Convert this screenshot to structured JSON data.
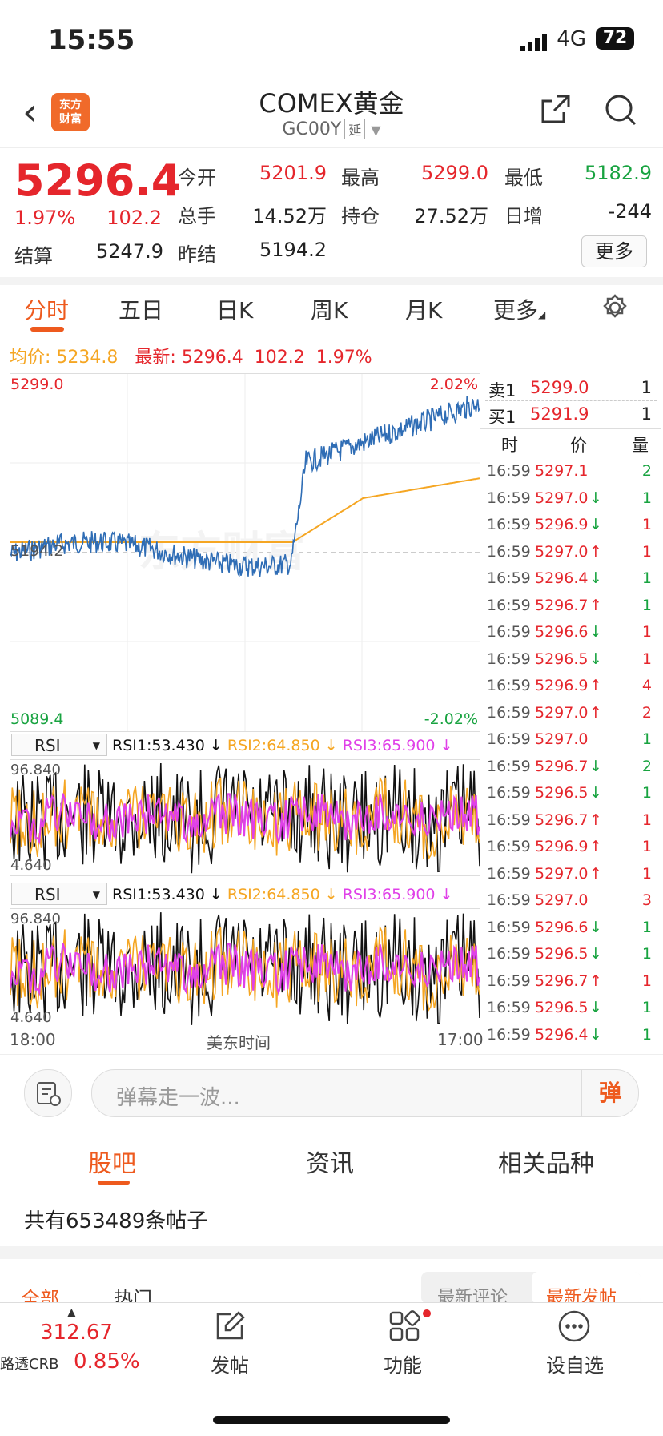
{
  "status_bar": {
    "time": "15:55",
    "network": "4G",
    "battery": "72"
  },
  "header": {
    "logo_line1": "东方",
    "logo_line2": "财富",
    "title": "COMEX黄金",
    "code": "GC00Y",
    "badge": "延"
  },
  "quote": {
    "price": "5296.4",
    "change_pct": "1.97%",
    "change": "102.2",
    "settle_label": "结算",
    "settle": "5247.9",
    "open_label": "今开",
    "open": "5201.9",
    "volume_label": "总手",
    "volume": "14.52万",
    "prev_label": "昨结",
    "prev": "5194.2",
    "high_label": "最高",
    "high": "5299.0",
    "oi_label": "持仓",
    "oi": "27.52万",
    "low_label": "最低",
    "low": "5182.9",
    "daily_inc_label": "日增",
    "daily_inc": "-244",
    "more": "更多"
  },
  "chart_tabs": [
    "分时",
    "五日",
    "日K",
    "周K",
    "月K",
    "更多"
  ],
  "avg_line": {
    "avg_label": "均价:",
    "avg": "5234.8",
    "latest_label": "最新:",
    "latest": "5296.4",
    "chg": "102.2",
    "pct": "1.97%"
  },
  "chart": {
    "max_label": "5299.0",
    "min_label": "5089.4",
    "mid_label": "5194.2",
    "max_pct": "2.02%",
    "min_pct": "-2.02%",
    "x_start": "18:00",
    "x_mid": "美东时间",
    "x_end": "17:00",
    "watermark": "东方财富"
  },
  "rsi": {
    "selector": "RSI",
    "rsi1": "RSI1:53.430 ↓",
    "rsi2": "RSI2:64.850 ↓",
    "rsi3": "RSI3:65.900 ↓",
    "top": "96.840",
    "bottom": "4.640"
  },
  "order_book": {
    "sell_label": "卖1",
    "sell_price": "5299.0",
    "sell_qty": "1",
    "buy_label": "买1",
    "buy_price": "5291.9",
    "buy_qty": "1",
    "col_time": "时",
    "col_price": "价",
    "col_qty": "量"
  },
  "trades": [
    {
      "t": "16:59",
      "p": "5297.1",
      "q": "2",
      "a": "",
      "c": "green"
    },
    {
      "t": "16:59",
      "p": "5297.0",
      "q": "1",
      "a": "↓",
      "c": "green"
    },
    {
      "t": "16:59",
      "p": "5296.9",
      "q": "1",
      "a": "↓",
      "c": "red"
    },
    {
      "t": "16:59",
      "p": "5297.0",
      "q": "1",
      "a": "↑",
      "c": "red"
    },
    {
      "t": "16:59",
      "p": "5296.4",
      "q": "1",
      "a": "↓",
      "c": "green"
    },
    {
      "t": "16:59",
      "p": "5296.7",
      "q": "1",
      "a": "↑",
      "c": "green"
    },
    {
      "t": "16:59",
      "p": "5296.6",
      "q": "1",
      "a": "↓",
      "c": "red"
    },
    {
      "t": "16:59",
      "p": "5296.5",
      "q": "1",
      "a": "↓",
      "c": "red"
    },
    {
      "t": "16:59",
      "p": "5296.9",
      "q": "4",
      "a": "↑",
      "c": "red"
    },
    {
      "t": "16:59",
      "p": "5297.0",
      "q": "2",
      "a": "↑",
      "c": "red"
    },
    {
      "t": "16:59",
      "p": "5297.0",
      "q": "1",
      "a": "",
      "c": "green"
    },
    {
      "t": "16:59",
      "p": "5296.7",
      "q": "2",
      "a": "↓",
      "c": "green"
    },
    {
      "t": "16:59",
      "p": "5296.5",
      "q": "1",
      "a": "↓",
      "c": "green"
    },
    {
      "t": "16:59",
      "p": "5296.7",
      "q": "1",
      "a": "↑",
      "c": "red"
    },
    {
      "t": "16:59",
      "p": "5296.9",
      "q": "1",
      "a": "↑",
      "c": "red"
    },
    {
      "t": "16:59",
      "p": "5297.0",
      "q": "1",
      "a": "↑",
      "c": "red"
    },
    {
      "t": "16:59",
      "p": "5297.0",
      "q": "3",
      "a": "",
      "c": "red"
    },
    {
      "t": "16:59",
      "p": "5296.6",
      "q": "1",
      "a": "↓",
      "c": "green"
    },
    {
      "t": "16:59",
      "p": "5296.5",
      "q": "1",
      "a": "↓",
      "c": "green"
    },
    {
      "t": "16:59",
      "p": "5296.7",
      "q": "1",
      "a": "↑",
      "c": "red"
    },
    {
      "t": "16:59",
      "p": "5296.5",
      "q": "1",
      "a": "↓",
      "c": "green"
    },
    {
      "t": "16:59",
      "p": "5296.4",
      "q": "1",
      "a": "↓",
      "c": "green"
    }
  ],
  "comment": {
    "placeholder": "弹幕走一波...",
    "dan": "弹"
  },
  "bottom_tabs": [
    "股吧",
    "资讯",
    "相关品种"
  ],
  "posts": {
    "prefix": "共有",
    "count": "653489",
    "suffix": "条帖子"
  },
  "filters": {
    "all": "全部",
    "hot": "热门",
    "latest_comment": "最新评论",
    "latest_post": "最新发帖"
  },
  "nav": {
    "index_value": "312.67",
    "index_name": "路透CRB",
    "index_pct": "0.85%",
    "post": "发帖",
    "func": "功能",
    "watch": "设自选"
  },
  "colors": {
    "accent": "#ee5a1e",
    "up": "#e5262c",
    "down": "#18a340",
    "rsi1": "#111111",
    "rsi2": "#f5a623",
    "rsi3": "#e040e8",
    "price_line": "#2f6db5",
    "avg_line": "#f5a623"
  }
}
